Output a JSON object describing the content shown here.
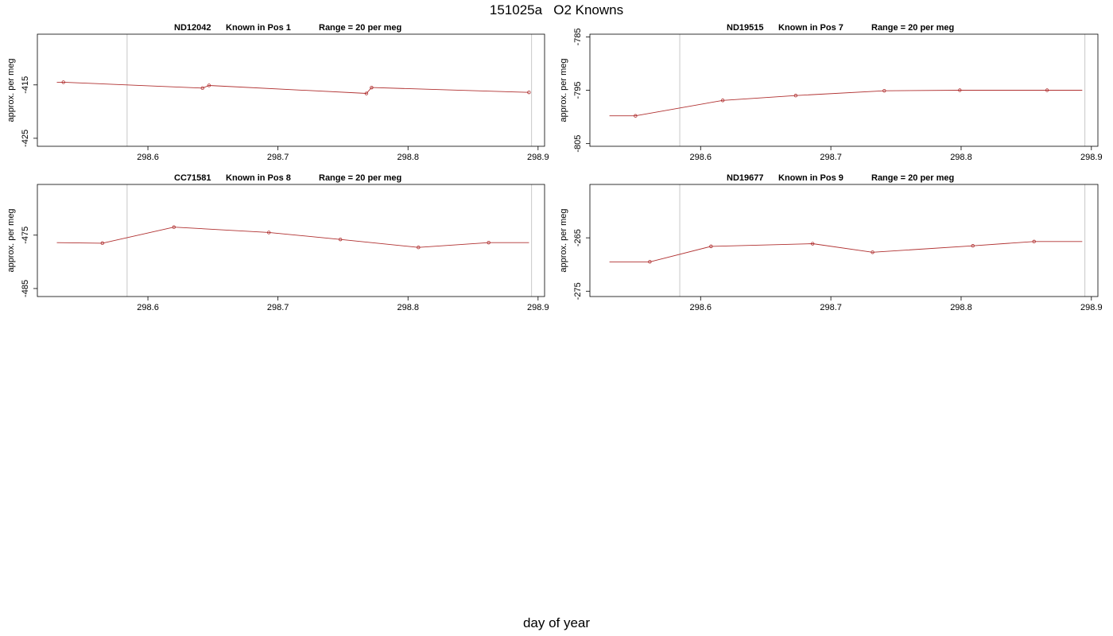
{
  "page": {
    "title": "151025a   O2 Knowns",
    "xlabel": "day of year"
  },
  "colors": {
    "series_line": "#b03030",
    "vline": "#c8c8c8",
    "axis": "#000000"
  },
  "chart_data": [
    {
      "type": "line",
      "header": {
        "id": "ND12042",
        "pos": "Known in Pos 1",
        "range": "Range = 20 per meg"
      },
      "ylabel": "approx. per meg",
      "xlim": [
        298.515,
        298.905
      ],
      "ylim": [
        -426.5,
        -405.5
      ],
      "xticks": [
        298.6,
        298.7,
        298.8,
        298.9
      ],
      "xtick_labels": [
        "298.6",
        "298.7",
        "298.8",
        "298.9"
      ],
      "yticks": [
        -415,
        -425
      ],
      "ytick_labels": [
        "-415",
        "-425"
      ],
      "vlines": [
        298.584,
        298.895
      ],
      "line_x": [
        298.53,
        298.535,
        298.642,
        298.647,
        298.768,
        298.772,
        298.893
      ],
      "line_y": [
        -414.5,
        -414.5,
        -415.6,
        -415.1,
        -416.6,
        -415.5,
        -416.4
      ],
      "points_x": [
        298.535,
        298.642,
        298.647,
        298.768,
        298.772,
        298.893
      ],
      "points_y": [
        -414.5,
        -415.6,
        -415.1,
        -416.6,
        -415.5,
        -416.4
      ]
    },
    {
      "type": "line",
      "header": {
        "id": "ND19515",
        "pos": "Known in Pos 7",
        "range": "Range = 20 per meg"
      },
      "ylabel": "approx. per meg",
      "xlim": [
        298.515,
        298.905
      ],
      "ylim": [
        -805.5,
        -784.5
      ],
      "xticks": [
        298.6,
        298.7,
        298.8,
        298.9
      ],
      "xtick_labels": [
        "298.6",
        "298.7",
        "298.8",
        "298.9"
      ],
      "yticks": [
        -785,
        -795,
        -805
      ],
      "ytick_labels": [
        "-785",
        "-795",
        "-805"
      ],
      "vlines": [
        298.584,
        298.895
      ],
      "line_x": [
        298.53,
        298.55,
        298.617,
        298.673,
        298.741,
        298.799,
        298.866,
        298.893
      ],
      "line_y": [
        -799.8,
        -799.8,
        -796.9,
        -796.0,
        -795.1,
        -795.0,
        -795.0,
        -795.0
      ],
      "points_x": [
        298.55,
        298.617,
        298.673,
        298.741,
        298.799,
        298.866
      ],
      "points_y": [
        -799.8,
        -796.9,
        -796.0,
        -795.1,
        -795.0,
        -795.0
      ]
    },
    {
      "type": "line",
      "header": {
        "id": "CC71581",
        "pos": "Known in Pos 8",
        "range": "Range = 20 per meg"
      },
      "ylabel": "approx. per meg",
      "xlim": [
        298.515,
        298.905
      ],
      "ylim": [
        -486.5,
        -465.5
      ],
      "xticks": [
        298.6,
        298.7,
        298.8,
        298.9
      ],
      "xtick_labels": [
        "298.6",
        "298.7",
        "298.8",
        "298.9"
      ],
      "yticks": [
        -475,
        -485
      ],
      "ytick_labels": [
        "-475",
        "-485"
      ],
      "vlines": [
        298.584,
        298.895
      ],
      "line_x": [
        298.53,
        298.565,
        298.62,
        298.693,
        298.748,
        298.808,
        298.862,
        298.893
      ],
      "line_y": [
        -476.4,
        -476.5,
        -473.5,
        -474.5,
        -475.8,
        -477.3,
        -476.4,
        -476.4
      ],
      "points_x": [
        298.565,
        298.62,
        298.693,
        298.748,
        298.808,
        298.862
      ],
      "points_y": [
        -476.5,
        -473.5,
        -474.5,
        -475.8,
        -477.3,
        -476.4
      ]
    },
    {
      "type": "line",
      "header": {
        "id": "ND19677",
        "pos": "Known in Pos 9",
        "range": "Range = 20 per meg"
      },
      "ylabel": "approx. per meg",
      "xlim": [
        298.515,
        298.905
      ],
      "ylim": [
        -276.0,
        -255.0
      ],
      "xticks": [
        298.6,
        298.7,
        298.8,
        298.9
      ],
      "xtick_labels": [
        "298.6",
        "298.7",
        "298.8",
        "298.9"
      ],
      "yticks": [
        -265,
        -275
      ],
      "ytick_labels": [
        "-265",
        "-275"
      ],
      "vlines": [
        298.584,
        298.895
      ],
      "line_x": [
        298.53,
        298.561,
        298.608,
        298.686,
        298.732,
        298.809,
        298.856,
        298.893
      ],
      "line_y": [
        -269.5,
        -269.5,
        -266.6,
        -266.1,
        -267.7,
        -266.5,
        -265.7,
        -265.7
      ],
      "points_x": [
        298.561,
        298.608,
        298.686,
        298.732,
        298.809,
        298.856
      ],
      "points_y": [
        -269.5,
        -266.6,
        -266.1,
        -267.7,
        -266.5,
        -265.7
      ]
    }
  ]
}
